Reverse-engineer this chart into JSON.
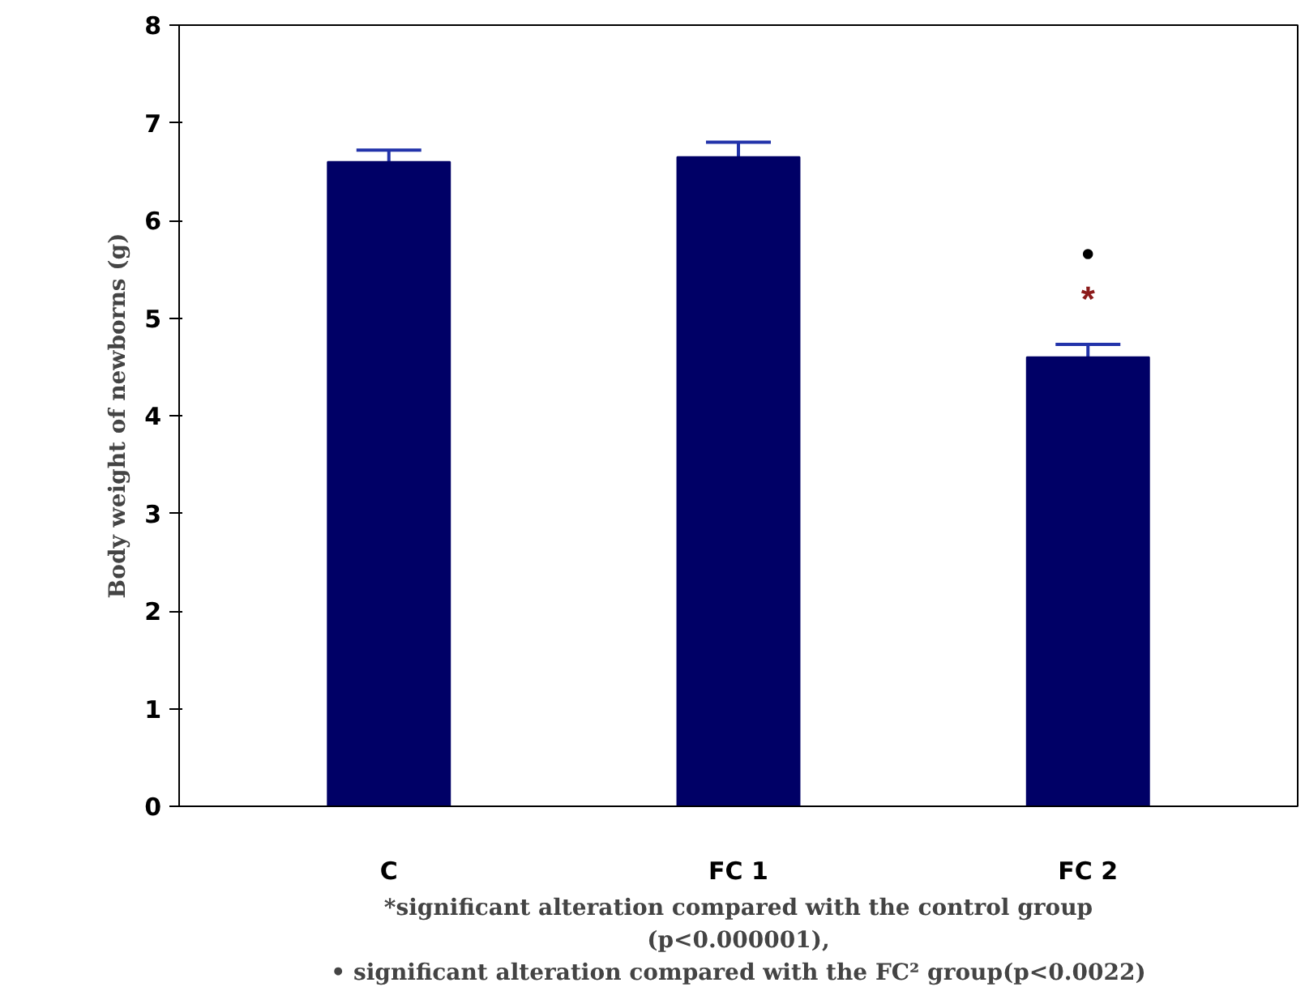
{
  "chart_data": {
    "type": "bar",
    "ylabel": "Body weight of newborns (g)",
    "categories": [
      "C",
      "FC 1",
      "FC 2"
    ],
    "values": [
      6.6,
      6.65,
      4.6
    ],
    "errors": [
      0.12,
      0.15,
      0.13
    ],
    "color": "#000066",
    "ylim": [
      0,
      8
    ],
    "yticks": [
      0,
      1,
      2,
      3,
      4,
      5,
      6,
      7,
      8
    ],
    "grid": false,
    "annotations": [
      {
        "text": "•",
        "x": "FC 2",
        "y": 4.6
      },
      {
        "text": "*",
        "x": "FC 2",
        "y": 4.6
      },
      "*significant alteration compared with the control group",
      "(p<0.000001),",
      "• significant alteration compared with the FC² group(p<0.0022)"
    ]
  }
}
